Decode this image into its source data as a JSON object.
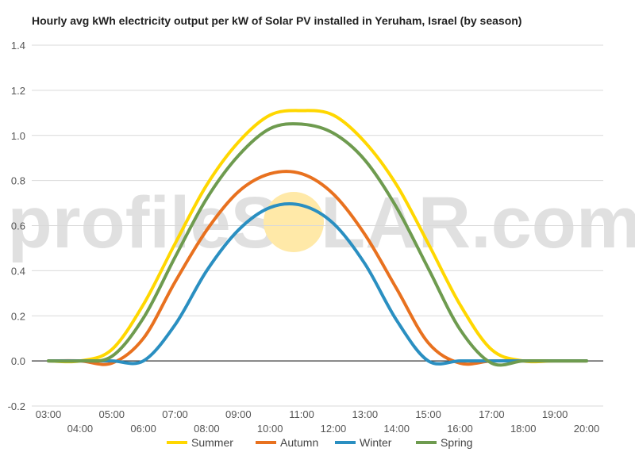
{
  "chart_data": {
    "type": "line",
    "title": "Hourly avg kWh electricity output per kW of Solar PV installed in Yeruham, Israel (by season)",
    "xlabel": "",
    "ylabel": "",
    "ylim": [
      -0.2,
      1.4
    ],
    "yticks": [
      "1.4",
      "1.2",
      "1.0",
      "0.8",
      "0.6",
      "0.4",
      "0.2",
      "0.0",
      "-0.2"
    ],
    "categories": [
      "03:00",
      "04:00",
      "05:00",
      "06:00",
      "07:00",
      "08:00",
      "09:00",
      "10:00",
      "11:00",
      "12:00",
      "13:00",
      "14:00",
      "15:00",
      "16:00",
      "17:00",
      "18:00",
      "19:00",
      "20:00"
    ],
    "grid": true,
    "legend_position": "bottom",
    "series": [
      {
        "name": "Summer",
        "color": "#FFD700",
        "values": [
          0,
          0,
          0.05,
          0.25,
          0.52,
          0.78,
          0.97,
          1.09,
          1.11,
          1.09,
          0.97,
          0.78,
          0.52,
          0.25,
          0.05,
          0,
          0,
          0
        ]
      },
      {
        "name": "Autumn",
        "color": "#E8711F",
        "values": [
          0,
          0,
          -0.01,
          0.1,
          0.35,
          0.58,
          0.75,
          0.83,
          0.83,
          0.74,
          0.56,
          0.32,
          0.08,
          -0.01,
          0,
          0,
          0,
          0
        ]
      },
      {
        "name": "Winter",
        "color": "#2A8FC1",
        "values": [
          0,
          0,
          0,
          0,
          0.16,
          0.4,
          0.58,
          0.68,
          0.69,
          0.61,
          0.43,
          0.18,
          0,
          0,
          0,
          0,
          0,
          0
        ]
      },
      {
        "name": "Spring",
        "color": "#6E9B4F",
        "values": [
          0,
          0,
          0.02,
          0.19,
          0.46,
          0.72,
          0.91,
          1.03,
          1.05,
          1.01,
          0.89,
          0.68,
          0.41,
          0.14,
          -0.01,
          0,
          0,
          0
        ]
      }
    ],
    "watermark": {
      "left": "profileS",
      "right": "LAR.com",
      "sun_color": "#FFE9A8"
    }
  }
}
